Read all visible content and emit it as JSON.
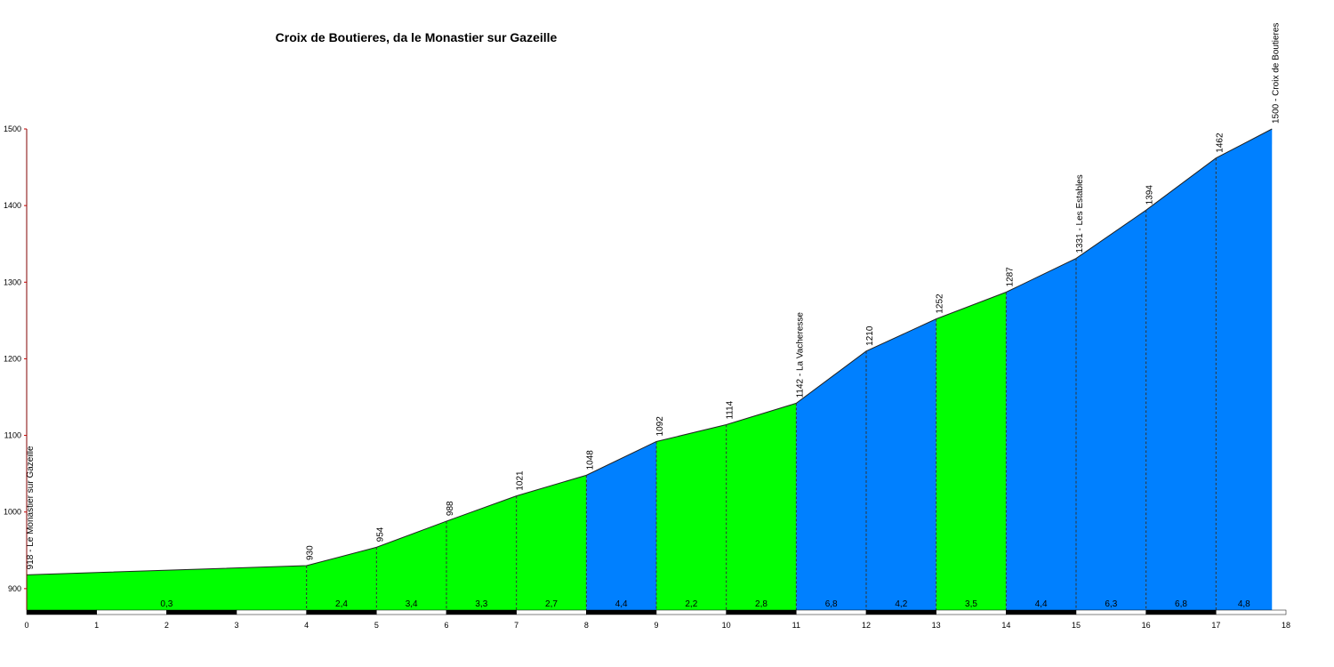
{
  "chart_data": {
    "type": "area",
    "title": "Croix de Boutieres, da le Monastier sur Gazeille",
    "x": [
      0,
      4,
      5,
      6,
      7,
      8,
      9,
      10,
      11,
      12,
      13,
      14,
      15,
      16,
      17,
      17.8
    ],
    "values": [
      918,
      930,
      954,
      988,
      1021,
      1048,
      1092,
      1114,
      1142,
      1210,
      1252,
      1287,
      1331,
      1394,
      1462,
      1500
    ],
    "value_labels": [
      "918 - Le Monastier sur Gazeille",
      "930",
      "954",
      "988",
      "1021",
      "1048",
      "1092",
      "1114",
      "1142 - La Vacheresse",
      "1210",
      "1252",
      "1287",
      "1331 - Les Estables",
      "1394",
      "1462",
      "1500 - Croix de Boutieres"
    ],
    "segments": {
      "values": [
        0.3,
        2.4,
        3.4,
        3.3,
        2.7,
        4.4,
        2.2,
        2.8,
        6.8,
        4.2,
        3.5,
        4.4,
        6.3,
        6.8,
        4.8
      ],
      "value_labels": [
        "0,3",
        "2,4",
        "3,4",
        "3,3",
        "2,7",
        "4,4",
        "2,2",
        "2,8",
        "6,8",
        "4,2",
        "3,5",
        "4,4",
        "6,3",
        "6,8",
        "4,8"
      ],
      "colors": [
        "#00ff00",
        "#00ff00",
        "#00ff00",
        "#00ff00",
        "#00ff00",
        "#0080ff",
        "#00ff00",
        "#00ff00",
        "#0080ff",
        "#0080ff",
        "#00ff00",
        "#0080ff",
        "#0080ff",
        "#0080ff",
        "#0080ff"
      ]
    },
    "xlim": [
      0,
      18
    ],
    "xticks": [
      0,
      1,
      2,
      3,
      4,
      5,
      6,
      7,
      8,
      9,
      10,
      11,
      12,
      13,
      14,
      15,
      16,
      17,
      18
    ],
    "ylim": [
      872,
      1500
    ],
    "yticks": [
      900,
      1000,
      1100,
      1200,
      1300,
      1400,
      1500
    ]
  }
}
